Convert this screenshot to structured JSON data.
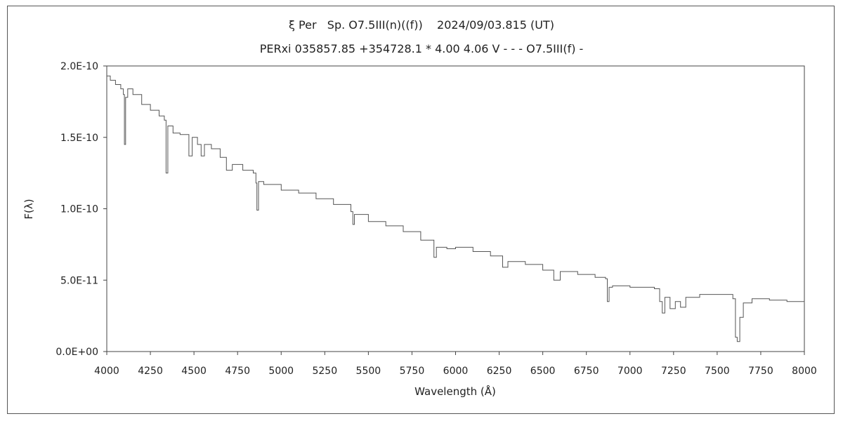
{
  "chart_data": {
    "type": "line",
    "title": "ξ Per   Sp. O7.5III(n)((f))    2024/09/03.815 (UT)",
    "subtitle": "PERxi 035857.85 +354728.1 * 4.00 4.06 V - - - O7.5III(f) -",
    "xlabel": "Wavelength (Å)",
    "ylabel": "F(λ)",
    "xlim": [
      4000,
      8000
    ],
    "ylim": [
      0,
      2e-10
    ],
    "x_ticks": [
      4000,
      4250,
      4500,
      4750,
      5000,
      5250,
      5500,
      5750,
      6000,
      6250,
      6500,
      6750,
      7000,
      7250,
      7500,
      7750,
      8000
    ],
    "x_tick_labels": [
      "4000",
      "4250",
      "4500",
      "4750",
      "5000",
      "5250",
      "5500",
      "5750",
      "6000",
      "6250",
      "6500",
      "6750",
      "7000",
      "7250",
      "7500",
      "7750",
      "8000"
    ],
    "y_ticks": [
      0,
      5e-11,
      1e-10,
      1.5e-10,
      2e-10
    ],
    "y_tick_labels": [
      "0.0E+00",
      "5.0E-11",
      "1.0E-10",
      "1.5E-10",
      "2.0E-10"
    ],
    "grid": false,
    "line_color": "#555555",
    "series": [
      {
        "x": [
          4000,
          4020,
          4050,
          4080,
          4095,
          4101,
          4108,
          4120,
          4150,
          4200,
          4250,
          4300,
          4330,
          4340,
          4350,
          4380,
          4420,
          4450,
          4471,
          4490,
          4520,
          4541,
          4560,
          4600,
          4650,
          4686,
          4720,
          4780,
          4840,
          4855,
          4861,
          4870,
          4900,
          5000,
          5100,
          5200,
          5300,
          5400,
          5411,
          5420,
          5500,
          5600,
          5700,
          5800,
          5876,
          5890,
          5950,
          6000,
          6100,
          6200,
          6270,
          6300,
          6400,
          6500,
          6563,
          6600,
          6700,
          6800,
          6860,
          6870,
          6880,
          6900,
          7000,
          7140,
          7170,
          7185,
          7200,
          7230,
          7260,
          7290,
          7320,
          7400,
          7500,
          7570,
          7590,
          7605,
          7615,
          7630,
          7650,
          7700,
          7800,
          7900,
          8000
        ],
        "y": [
          1.93e-10,
          1.9e-10,
          1.87e-10,
          1.84e-10,
          1.8e-10,
          1.45e-10,
          1.78e-10,
          1.84e-10,
          1.8e-10,
          1.73e-10,
          1.69e-10,
          1.65e-10,
          1.62e-10,
          1.25e-10,
          1.58e-10,
          1.53e-10,
          1.52e-10,
          1.52e-10,
          1.37e-10,
          1.5e-10,
          1.45e-10,
          1.37e-10,
          1.45e-10,
          1.42e-10,
          1.36e-10,
          1.27e-10,
          1.31e-10,
          1.27e-10,
          1.25e-10,
          1.18e-10,
          9.9e-11,
          1.19e-10,
          1.17e-10,
          1.13e-10,
          1.11e-10,
          1.07e-10,
          1.03e-10,
          9.8e-11,
          8.9e-11,
          9.6e-11,
          9.1e-11,
          8.8e-11,
          8.4e-11,
          7.8e-11,
          6.6e-11,
          7.3e-11,
          7.2e-11,
          7.3e-11,
          7e-11,
          6.7e-11,
          5.9e-11,
          6.3e-11,
          6.1e-11,
          5.7e-11,
          5e-11,
          5.6e-11,
          5.4e-11,
          5.2e-11,
          5.1e-11,
          3.5e-11,
          4.5e-11,
          4.6e-11,
          4.5e-11,
          4.4e-11,
          3.5e-11,
          2.7e-11,
          3.8e-11,
          3e-11,
          3.5e-11,
          3.1e-11,
          3.8e-11,
          4e-11,
          4e-11,
          4e-11,
          3.7e-11,
          1e-11,
          7e-12,
          2.4e-11,
          3.4e-11,
          3.7e-11,
          3.6e-11,
          3.5e-11,
          3.4e-11
        ]
      }
    ]
  }
}
